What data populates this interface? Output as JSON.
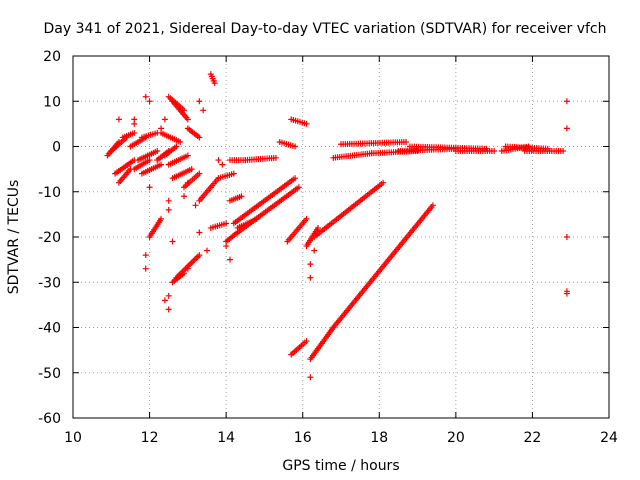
{
  "chart_data": {
    "type": "scatter",
    "title": "Day 341 of 2021, Sidereal Day-to-day VTEC variation (SDTVAR) for receiver vfch",
    "xlabel": "GPS time / hours",
    "ylabel": "SDTVAR / TECUs",
    "xlim": [
      10,
      24
    ],
    "ylim": [
      -60,
      20
    ],
    "xticks": [
      10,
      12,
      14,
      16,
      18,
      20,
      22,
      24
    ],
    "yticks": [
      -60,
      -50,
      -40,
      -30,
      -20,
      -10,
      0,
      10,
      20
    ],
    "xtick_labels": [
      "10",
      "12",
      "14",
      "16",
      "18",
      "20",
      "22",
      "24"
    ],
    "ytick_labels": [
      "-60",
      "-50",
      "-40",
      "-30",
      "-20",
      "-10",
      "0",
      "10",
      "20"
    ],
    "grid": true,
    "marker": "+",
    "color": "#ff0000",
    "segments": [
      {
        "x": [
          10.9,
          11.2
        ],
        "y": [
          -2,
          1
        ]
      },
      {
        "x": [
          11.0,
          11.4
        ],
        "y": [
          -1,
          2
        ]
      },
      {
        "x": [
          11.1,
          11.6
        ],
        "y": [
          -6,
          -3
        ]
      },
      {
        "x": [
          11.2,
          11.5
        ],
        "y": [
          -8,
          -5
        ]
      },
      {
        "x": [
          11.3,
          11.6
        ],
        "y": [
          2,
          3
        ]
      },
      {
        "x": [
          11.5,
          11.9
        ],
        "y": [
          0,
          2
        ]
      },
      {
        "x": [
          11.6,
          12.0
        ],
        "y": [
          -5,
          -3
        ]
      },
      {
        "x": [
          11.7,
          12.2
        ],
        "y": [
          -3,
          -1
        ]
      },
      {
        "x": [
          11.8,
          12.3
        ],
        "y": [
          -6,
          -4
        ]
      },
      {
        "x": [
          11.8,
          12.2
        ],
        "y": [
          2,
          3
        ]
      },
      {
        "x": [
          12.0,
          12.3
        ],
        "y": [
          -20,
          -16
        ]
      },
      {
        "x": [
          12.2,
          12.5
        ],
        "y": [
          -3,
          -1
        ]
      },
      {
        "x": [
          12.3,
          12.8
        ],
        "y": [
          3,
          1
        ]
      },
      {
        "x": [
          12.4,
          12.7
        ],
        "y": [
          -2,
          0
        ]
      },
      {
        "x": [
          12.5,
          12.9
        ],
        "y": [
          11,
          8
        ]
      },
      {
        "x": [
          12.6,
          13.0
        ],
        "y": [
          10,
          6
        ]
      },
      {
        "x": [
          12.6,
          13.1
        ],
        "y": [
          -7,
          -5
        ]
      },
      {
        "x": [
          12.5,
          13.0
        ],
        "y": [
          -4,
          -2
        ]
      },
      {
        "x": [
          12.6,
          12.9
        ],
        "y": [
          -30,
          -28
        ]
      },
      {
        "x": [
          12.7,
          13.3
        ],
        "y": [
          -29,
          -24
        ]
      },
      {
        "x": [
          12.9,
          13.3
        ],
        "y": [
          -9,
          -6
        ]
      },
      {
        "x": [
          13.0,
          13.3
        ],
        "y": [
          4,
          2
        ]
      },
      {
        "x": [
          13.3,
          13.6
        ],
        "y": [
          -12,
          -9
        ]
      },
      {
        "x": [
          13.6,
          13.8
        ],
        "y": [
          -9,
          -7
        ]
      },
      {
        "x": [
          13.6,
          14.0
        ],
        "y": [
          -18,
          -17
        ]
      },
      {
        "x": [
          13.6,
          13.7
        ],
        "y": [
          16,
          14
        ]
      },
      {
        "x": [
          13.8,
          14.2
        ],
        "y": [
          -7,
          -6
        ]
      },
      {
        "x": [
          14.0,
          14.3
        ],
        "y": [
          -21,
          -19
        ]
      },
      {
        "x": [
          14.1,
          14.4
        ],
        "y": [
          -12,
          -11
        ]
      },
      {
        "x": [
          14.1,
          14.5
        ],
        "y": [
          -3,
          -3
        ]
      },
      {
        "x": [
          14.5,
          15.3
        ],
        "y": [
          -3,
          -2.5
        ]
      },
      {
        "x": [
          14.2,
          15.8
        ],
        "y": [
          -17,
          -7
        ]
      },
      {
        "x": [
          14.3,
          15.9
        ],
        "y": [
          -19,
          -9
        ]
      },
      {
        "x": [
          14.3,
          14.8
        ],
        "y": [
          -18,
          -16
        ]
      },
      {
        "x": [
          15.4,
          15.8
        ],
        "y": [
          1,
          0
        ]
      },
      {
        "x": [
          15.7,
          16.1
        ],
        "y": [
          6,
          5
        ]
      },
      {
        "x": [
          15.6,
          16.1
        ],
        "y": [
          -21,
          -16
        ]
      },
      {
        "x": [
          15.7,
          16.1
        ],
        "y": [
          -46,
          -43
        ]
      },
      {
        "x": [
          16.1,
          16.4
        ],
        "y": [
          -22,
          -18
        ]
      },
      {
        "x": [
          16.2,
          16.8
        ],
        "y": [
          -47,
          -40
        ]
      },
      {
        "x": [
          16.8,
          19.4
        ],
        "y": [
          -40,
          -13
        ]
      },
      {
        "x": [
          16.3,
          18.1
        ],
        "y": [
          -20,
          -8
        ]
      },
      {
        "x": [
          16.8,
          17.8
        ],
        "y": [
          -2.5,
          -1.5
        ]
      },
      {
        "x": [
          17.8,
          19.0
        ],
        "y": [
          -1.5,
          -1
        ]
      },
      {
        "x": [
          17.0,
          18.7
        ],
        "y": [
          0.5,
          1
        ]
      },
      {
        "x": [
          18.5,
          20.0
        ],
        "y": [
          -1,
          -0.5
        ]
      },
      {
        "x": [
          20.0,
          21.0
        ],
        "y": [
          -1,
          -1
        ]
      },
      {
        "x": [
          18.8,
          20.8
        ],
        "y": [
          0,
          -0.5
        ]
      },
      {
        "x": [
          21.2,
          21.9
        ],
        "y": [
          -1,
          0
        ]
      },
      {
        "x": [
          21.8,
          22.8
        ],
        "y": [
          -1,
          -1
        ]
      },
      {
        "x": [
          21.3,
          22.4
        ],
        "y": [
          0,
          -0.5
        ]
      }
    ],
    "points": [
      {
        "x": 11.2,
        "y": 6
      },
      {
        "x": 11.6,
        "y": 5
      },
      {
        "x": 11.6,
        "y": 6
      },
      {
        "x": 11.9,
        "y": 11
      },
      {
        "x": 12.0,
        "y": 10
      },
      {
        "x": 12.0,
        "y": -9
      },
      {
        "x": 11.9,
        "y": -27
      },
      {
        "x": 11.9,
        "y": -24
      },
      {
        "x": 12.3,
        "y": 4
      },
      {
        "x": 12.4,
        "y": 6
      },
      {
        "x": 12.5,
        "y": -12
      },
      {
        "x": 12.5,
        "y": -14
      },
      {
        "x": 12.4,
        "y": -34
      },
      {
        "x": 12.5,
        "y": -33
      },
      {
        "x": 12.5,
        "y": -36
      },
      {
        "x": 12.6,
        "y": -21
      },
      {
        "x": 12.9,
        "y": -11
      },
      {
        "x": 13.0,
        "y": -8
      },
      {
        "x": 13.3,
        "y": 10
      },
      {
        "x": 13.4,
        "y": 8
      },
      {
        "x": 13.2,
        "y": -13
      },
      {
        "x": 13.3,
        "y": -19
      },
      {
        "x": 13.5,
        "y": -23
      },
      {
        "x": 13.0,
        "y": -27
      },
      {
        "x": 13.8,
        "y": -3
      },
      {
        "x": 13.9,
        "y": -4
      },
      {
        "x": 14.1,
        "y": -25
      },
      {
        "x": 14.0,
        "y": -22
      },
      {
        "x": 16.2,
        "y": -51
      },
      {
        "x": 16.2,
        "y": -29
      },
      {
        "x": 16.2,
        "y": -26
      },
      {
        "x": 16.3,
        "y": -23
      },
      {
        "x": 22.9,
        "y": 10
      },
      {
        "x": 22.9,
        "y": 4
      },
      {
        "x": 22.9,
        "y": -20
      },
      {
        "x": 22.9,
        "y": -32
      },
      {
        "x": 22.9,
        "y": -32.5
      }
    ]
  }
}
